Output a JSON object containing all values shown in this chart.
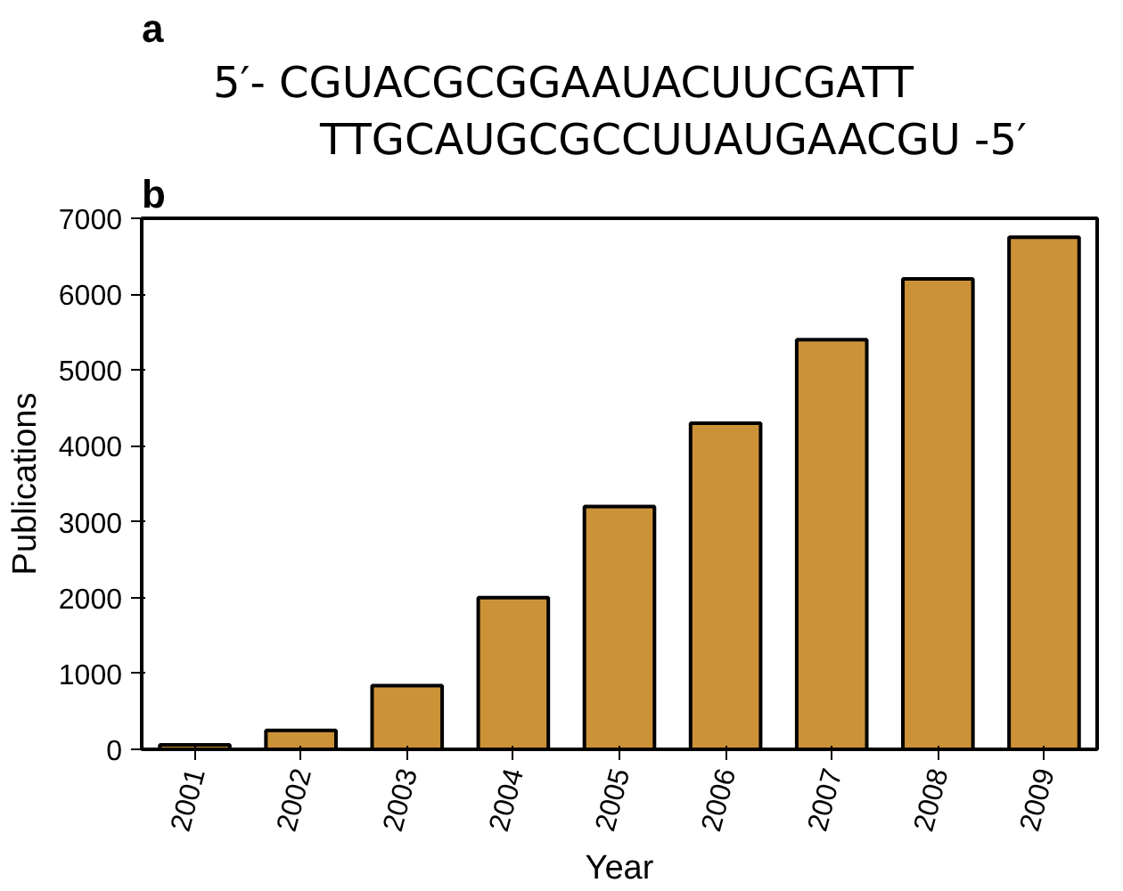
{
  "chart_data": {
    "type": "bar",
    "xlabel": "Year",
    "ylabel": "Publications",
    "categories": [
      "2001",
      "2002",
      "2003",
      "2004",
      "2005",
      "2006",
      "2007",
      "2008",
      "2009"
    ],
    "values": [
      60,
      250,
      840,
      2000,
      3200,
      4300,
      5400,
      6200,
      6750
    ],
    "color": "#cc9238",
    "ylim": [
      0,
      7000
    ],
    "yticks": [
      0,
      1000,
      2000,
      3000,
      4000,
      5000,
      6000,
      7000
    ],
    "grid": false,
    "annotations": [
      "a",
      "5′-   CGUACGCGGAAUACUUCGATT",
      "TTGCAUGCGCCUUAUGAACGU   -5′",
      "b"
    ]
  }
}
